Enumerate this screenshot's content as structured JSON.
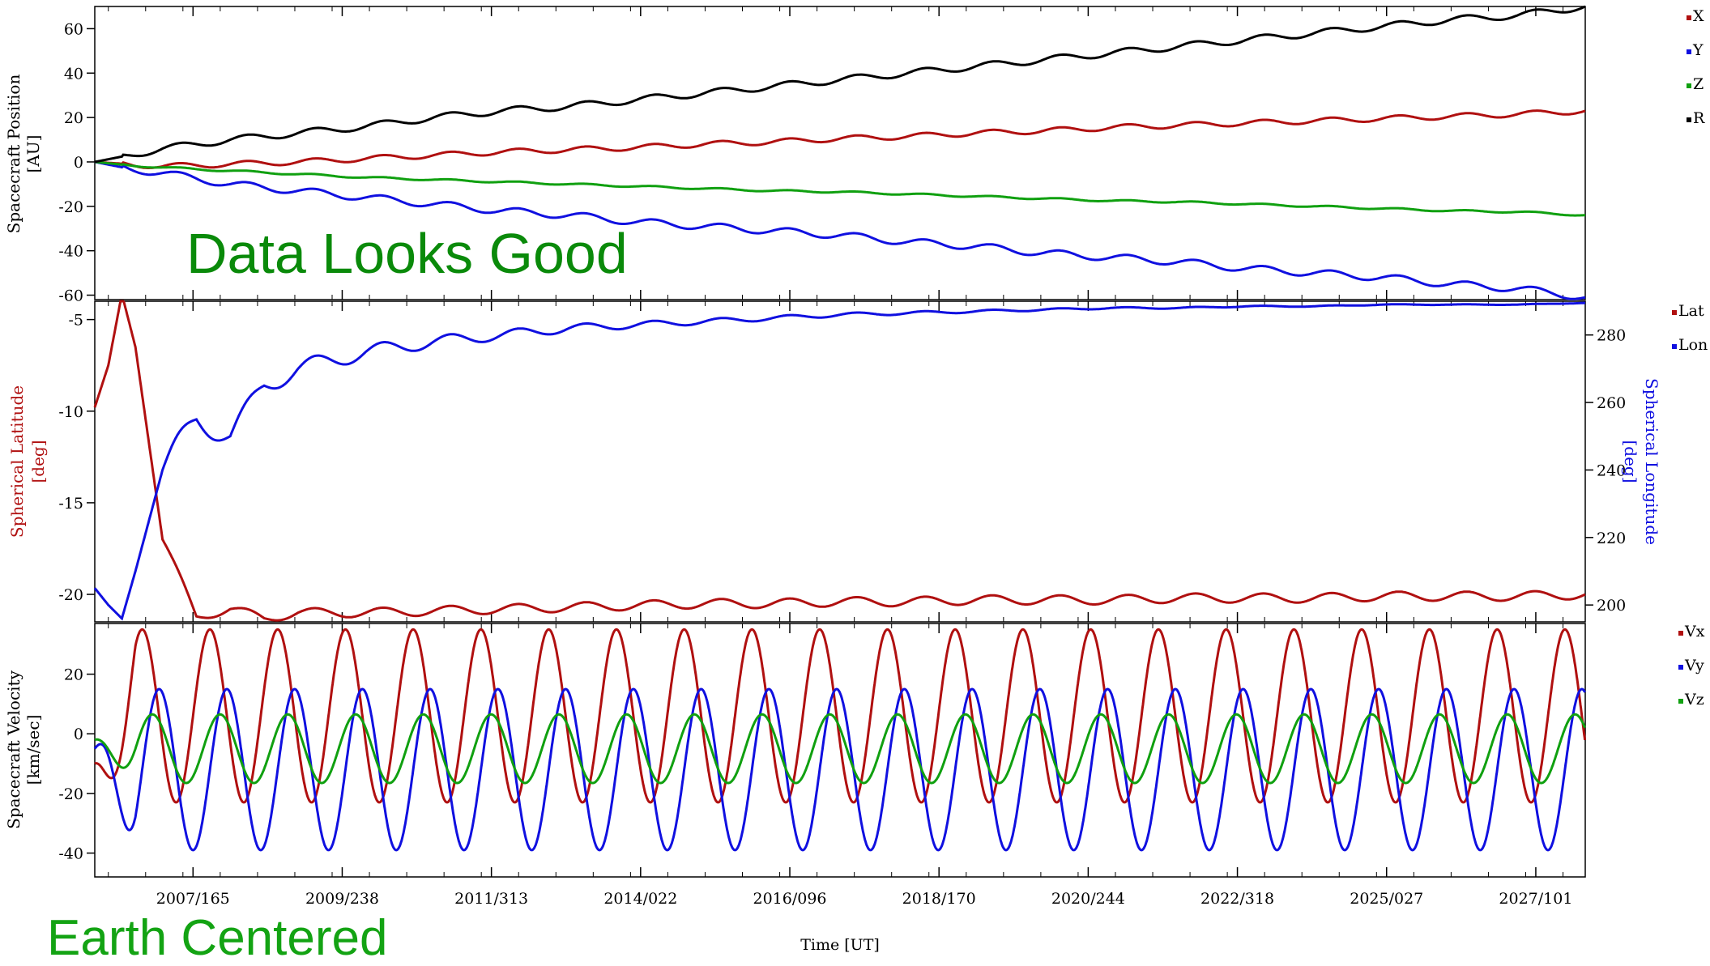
{
  "notes": {
    "status_text": "Data Looks Good",
    "status_color": "#0a8a0a",
    "frame_text": "Earth Centered",
    "frame_color": "#13a313"
  },
  "chart_data": [
    {
      "type": "line",
      "title": "",
      "xlabel": "",
      "ylabel": "Spacecraft Position",
      "ylabel_unit": "[AU]",
      "ylim": [
        -62,
        70
      ],
      "yticks": [
        -60,
        -40,
        -20,
        0,
        20,
        40,
        60
      ],
      "x_tick_labels": [
        "2007/165",
        "2009/238",
        "2011/313",
        "2014/022",
        "2016/096",
        "2018/170",
        "2020/244",
        "2022/318",
        "2025/027",
        "2027/101"
      ],
      "x": [
        2006.0,
        2006.5,
        2007.0,
        2008.0,
        2009.0,
        2010.0,
        2011.0,
        2012.0,
        2013.0,
        2014.0,
        2015.0,
        2016.0,
        2017.0,
        2018.0,
        2019.0,
        2020.0,
        2021.0,
        2022.0,
        2023.0,
        2024.0,
        2025.0,
        2026.0,
        2027.0,
        2028.0
      ],
      "series": [
        {
          "name": "X",
          "color": "#b01010",
          "values": [
            0,
            -1,
            -2,
            -1,
            0,
            1.5,
            3,
            4.5,
            5.5,
            6.5,
            8,
            9,
            10.5,
            11.5,
            13,
            14,
            15.5,
            16.5,
            17.5,
            18.5,
            19.5,
            20.5,
            21.5,
            23
          ]
        },
        {
          "name": "Y",
          "color": "#1010e0",
          "values": [
            0,
            -3,
            -5,
            -10,
            -13,
            -16,
            -19,
            -22,
            -24,
            -27,
            -29,
            -31,
            -33,
            -36,
            -38,
            -41,
            -43,
            -45,
            -48,
            -50,
            -52,
            -55,
            -57,
            -61
          ]
        },
        {
          "name": "Z",
          "color": "#10a010",
          "values": [
            0,
            -1.5,
            -2.5,
            -4,
            -5.5,
            -7,
            -8,
            -9,
            -10,
            -11,
            -12,
            -13,
            -13.5,
            -14.5,
            -15.5,
            -16.5,
            -17.5,
            -18,
            -19,
            -20,
            -21,
            -22,
            -22.5,
            -24
          ]
        },
        {
          "name": "R",
          "color": "#000000",
          "values": [
            0,
            3,
            6,
            10,
            13,
            16,
            20,
            23,
            25,
            28,
            31,
            34,
            37,
            40,
            43,
            46,
            49,
            52,
            55,
            58,
            61,
            64,
            66,
            70
          ]
        }
      ],
      "legend_position": "right"
    },
    {
      "type": "line",
      "title": "",
      "xlabel": "",
      "ylabel": "Spherical Latitude",
      "ylabel_unit": "[deg]",
      "ylim": [
        -21.5,
        -4
      ],
      "yticks": [
        -20,
        -15,
        -10,
        -5
      ],
      "y2label": "Spherical Longitude",
      "y2label_unit": "[deg]",
      "y2lim": [
        195,
        290
      ],
      "y2ticks": [
        200,
        220,
        240,
        260,
        280
      ],
      "x": [
        2006.0,
        2006.2,
        2006.4,
        2006.6,
        2007.0,
        2007.5,
        2008.0,
        2008.5,
        2009.0,
        2010.0,
        2011.0,
        2012.0,
        2013.0,
        2014.0,
        2015.0,
        2016.0,
        2017.0,
        2018.0,
        2019.0,
        2020.0,
        2021.0,
        2022.0,
        2023.0,
        2024.0,
        2025.0,
        2026.0,
        2027.0,
        2028.0
      ],
      "series": [
        {
          "name": "Lat",
          "axis": "left",
          "color": "#b01010",
          "values": [
            -9.8,
            -7.5,
            -3.6,
            -6.5,
            -17.0,
            -21.2,
            -20.8,
            -21.3,
            -21.0,
            -21.0,
            -20.9,
            -20.8,
            -20.7,
            -20.6,
            -20.5,
            -20.5,
            -20.4,
            -20.4,
            -20.3,
            -20.3,
            -20.3,
            -20.2,
            -20.2,
            -20.2,
            -20.1,
            -20.1,
            -20.1,
            -20.0
          ]
        },
        {
          "name": "Lon",
          "axis": "right",
          "color": "#1010e0",
          "values": [
            205,
            200,
            196,
            210,
            240,
            255,
            250,
            265,
            270,
            275,
            278,
            280,
            282,
            283,
            284,
            285,
            286,
            286.5,
            287,
            287.5,
            288,
            288,
            288.5,
            288.5,
            289,
            289,
            289,
            289.5
          ]
        }
      ],
      "legend_position": "right"
    },
    {
      "type": "line",
      "title": "",
      "xlabel": "Time [UT]",
      "ylabel": "Spacecraft Velocity",
      "ylabel_unit": "[km/sec]",
      "ylim": [
        -48,
        37
      ],
      "yticks": [
        -40,
        -20,
        0,
        20
      ],
      "x_tick_labels": [
        "2007/165",
        "2009/238",
        "2011/313",
        "2014/022",
        "2016/096",
        "2018/170",
        "2020/244",
        "2022/318",
        "2025/027",
        "2027/101"
      ],
      "oscillation_period_years": 1.0,
      "series": [
        {
          "name": "Vx",
          "color": "#b01010",
          "mean": 6,
          "amplitude": 29,
          "start_value": -10
        },
        {
          "name": "Vy",
          "color": "#1010e0",
          "mean": -12,
          "amplitude": 27,
          "start_value": -5
        },
        {
          "name": "Vz",
          "color": "#10a010",
          "mean": -5,
          "amplitude": 11.5,
          "start_value": -2
        }
      ],
      "legend_position": "right"
    }
  ]
}
